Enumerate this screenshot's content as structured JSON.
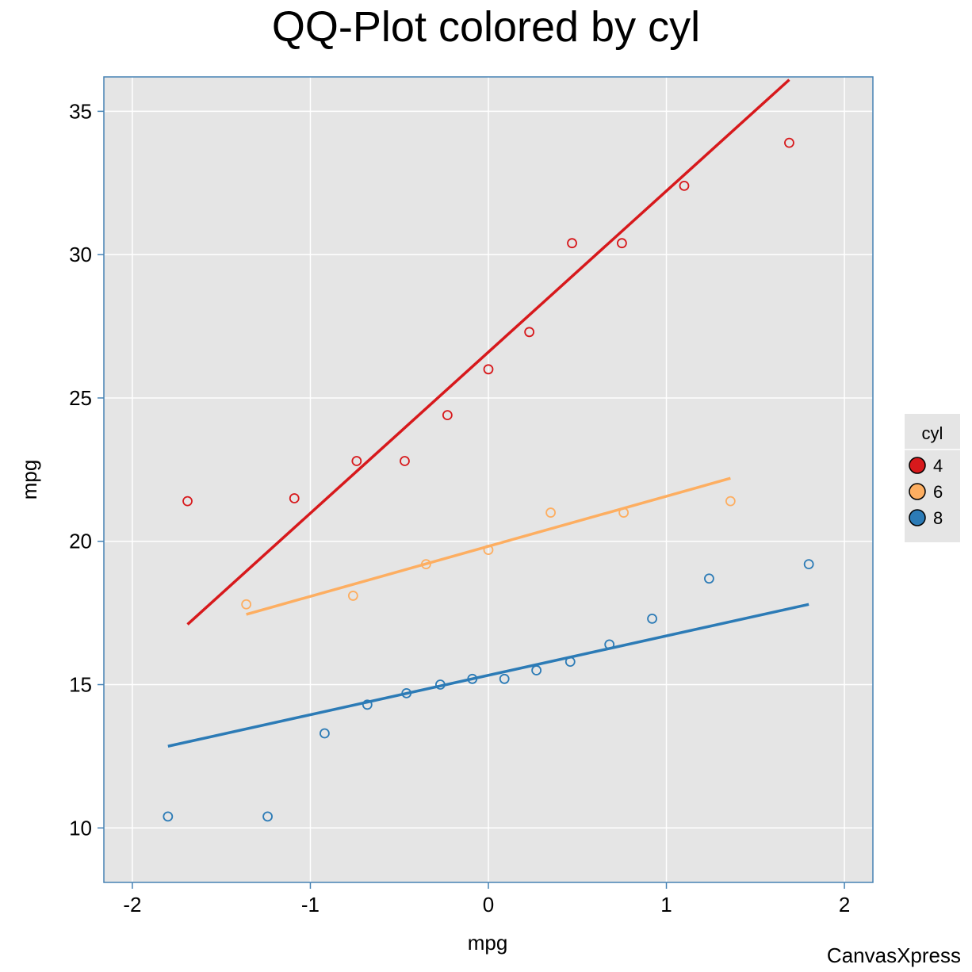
{
  "chart_data": {
    "type": "scatter",
    "title": "QQ-Plot colored by cyl",
    "xlabel": "mpg",
    "ylabel": "mpg",
    "xlim": [
      -2.16,
      2.16
    ],
    "ylim": [
      8.1,
      36.2
    ],
    "xticks": [
      -2,
      -1,
      0,
      1,
      2
    ],
    "yticks": [
      10,
      15,
      20,
      25,
      30,
      35
    ],
    "grid": true,
    "legend": {
      "title": "cyl",
      "placement": "right"
    },
    "series": [
      {
        "name": "4",
        "color": "#d7191c",
        "points": [
          [
            -1.69,
            21.4
          ],
          [
            -1.09,
            21.5
          ],
          [
            -0.74,
            22.8
          ],
          [
            -0.47,
            22.8
          ],
          [
            -0.23,
            24.4
          ],
          [
            0.0,
            26.0
          ],
          [
            0.23,
            27.3
          ],
          [
            0.47,
            30.4
          ],
          [
            0.75,
            30.4
          ],
          [
            1.1,
            32.4
          ],
          [
            1.69,
            33.9
          ]
        ],
        "fit": [
          [
            -1.69,
            17.1
          ],
          [
            1.69,
            36.1
          ]
        ]
      },
      {
        "name": "6",
        "color": "#fdae61",
        "points": [
          [
            -1.36,
            17.8
          ],
          [
            -0.76,
            18.1
          ],
          [
            -0.35,
            19.2
          ],
          [
            0.0,
            19.7
          ],
          [
            0.35,
            21.0
          ],
          [
            0.76,
            21.0
          ],
          [
            1.36,
            21.4
          ]
        ],
        "fit": [
          [
            -1.36,
            17.45
          ],
          [
            1.36,
            22.2
          ]
        ]
      },
      {
        "name": "8",
        "color": "#2c7bb6",
        "points": [
          [
            -1.8,
            10.4
          ],
          [
            -1.24,
            10.4
          ],
          [
            -0.92,
            13.3
          ],
          [
            -0.68,
            14.3
          ],
          [
            -0.46,
            14.7
          ],
          [
            -0.27,
            15.0
          ],
          [
            -0.09,
            15.2
          ],
          [
            0.09,
            15.2
          ],
          [
            0.27,
            15.5
          ],
          [
            0.46,
            15.8
          ],
          [
            0.68,
            16.4
          ],
          [
            0.92,
            17.3
          ],
          [
            1.24,
            18.7
          ],
          [
            1.8,
            19.2
          ]
        ],
        "fit": [
          [
            -1.8,
            12.85
          ],
          [
            1.8,
            17.8
          ]
        ]
      }
    ]
  },
  "watermark": "CanvasXpress",
  "colors": {
    "panel_bg": "#e5e5e5",
    "grid": "#ffffff",
    "frame": "#4682b4"
  }
}
